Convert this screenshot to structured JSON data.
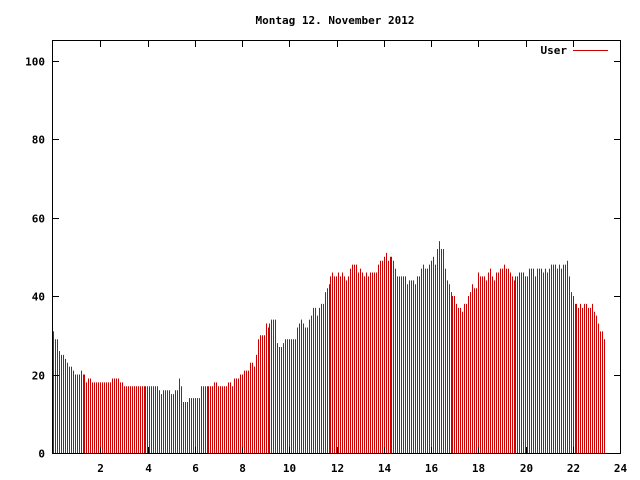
{
  "chart_data": {
    "type": "bar",
    "title": "Montag 12. November 2012",
    "xlabel": "",
    "ylabel": "",
    "xlim": [
      0,
      24
    ],
    "ylim": [
      0,
      105
    ],
    "xticks": [
      2,
      4,
      6,
      8,
      10,
      12,
      14,
      16,
      18,
      20,
      22,
      24
    ],
    "yticks": [
      0,
      20,
      40,
      60,
      80,
      100
    ],
    "grid": false,
    "legend_position": "top-right",
    "bar_color": "#cc0000",
    "series": [
      {
        "name": "User",
        "x_start": 0,
        "x_step": 0.0833,
        "values": [
          31,
          29,
          29,
          26,
          25,
          25,
          24,
          23,
          22,
          22,
          21,
          20,
          20,
          20,
          21,
          20,
          20,
          18,
          19,
          19,
          18,
          18,
          18,
          18,
          18,
          18,
          18,
          18,
          18,
          18,
          19,
          19,
          19,
          19,
          18,
          18,
          17,
          17,
          17,
          17,
          17,
          17,
          17,
          17,
          17,
          17,
          17,
          17,
          17,
          17,
          17,
          17,
          17,
          17,
          16,
          15,
          16,
          16,
          16,
          16,
          15,
          15,
          16,
          16,
          19,
          17,
          13,
          13,
          13,
          14,
          14,
          14,
          14,
          14,
          14,
          17,
          17,
          17,
          17,
          17,
          17,
          17,
          18,
          18,
          17,
          17,
          17,
          17,
          17,
          18,
          18,
          17,
          19,
          19,
          19,
          20,
          20,
          21,
          21,
          21,
          23,
          23,
          22,
          25,
          29,
          30,
          30,
          30,
          33,
          32,
          33,
          34,
          34,
          34,
          28,
          27,
          27,
          28,
          29,
          29,
          29,
          29,
          29,
          29,
          32,
          33,
          34,
          33,
          32,
          32,
          34,
          35,
          37,
          37,
          35,
          37,
          38,
          38,
          41,
          42,
          43,
          45,
          46,
          45,
          45,
          46,
          45,
          46,
          45,
          44,
          45,
          47,
          48,
          48,
          48,
          46,
          47,
          46,
          45,
          46,
          45,
          46,
          46,
          46,
          46,
          48,
          49,
          49,
          50,
          51,
          49,
          50,
          50,
          49,
          47,
          45,
          45,
          45,
          45,
          45,
          43,
          44,
          44,
          44,
          43,
          45,
          45,
          47,
          48,
          47,
          47,
          48,
          49,
          50,
          48,
          52,
          54,
          52,
          52,
          47,
          44,
          43,
          41,
          40,
          40,
          38,
          37,
          37,
          36,
          38,
          38,
          40,
          41,
          43,
          42,
          42,
          46,
          45,
          45,
          45,
          44,
          46,
          47,
          45,
          44,
          46,
          46,
          47,
          47,
          48,
          47,
          47,
          46,
          45,
          44,
          45,
          45,
          46,
          46,
          46,
          45,
          45,
          47,
          47,
          47,
          45,
          47,
          47,
          47,
          46,
          47,
          46,
          47,
          48,
          48,
          48,
          47,
          48,
          47,
          48,
          48,
          49,
          45,
          41,
          40,
          38,
          38,
          37,
          38,
          37,
          38,
          38,
          37,
          37,
          38,
          36,
          35,
          33,
          31,
          31,
          29
        ]
      }
    ]
  }
}
